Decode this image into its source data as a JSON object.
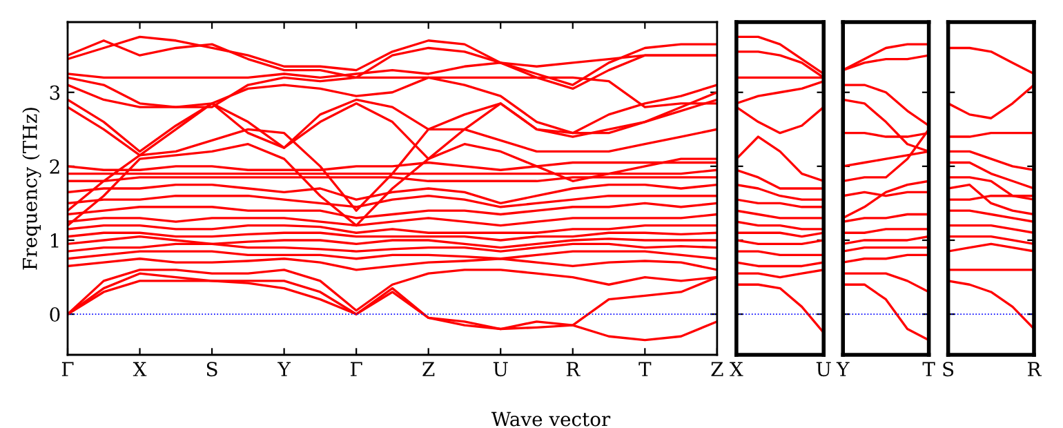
{
  "chart_data": [
    {
      "type": "line",
      "ylabel": "Frequency (THz)",
      "xlabel": "Wave vector",
      "color": "#ff0000",
      "line_style": "solid",
      "marker": "none",
      "grid": false,
      "legend": false,
      "categories": [
        "Γ",
        null,
        "X",
        null,
        "S",
        null,
        "Y",
        null,
        "Γ",
        null,
        "Z",
        null,
        "U",
        null,
        "R",
        null,
        "T",
        null,
        "Z"
      ],
      "ylim": [
        -0.55,
        3.95
      ],
      "yticks": [
        0,
        1,
        2,
        3
      ],
      "ref_lines": [
        {
          "axis": "y",
          "value": 0,
          "color": "#0000ff",
          "line_style": "dotted"
        }
      ],
      "series": [
        {
          "values": [
            0,
            0.3,
            0.45,
            0.45,
            0.45,
            0.42,
            0.35,
            0.2,
            0,
            0.3,
            -0.05,
            -0.15,
            -0.2,
            -0.18,
            -0.15,
            -0.3,
            -0.35,
            -0.3,
            -0.1
          ]
        },
        {
          "values": [
            0,
            0.35,
            0.55,
            0.5,
            0.45,
            0.45,
            0.45,
            0.3,
            0,
            0.35,
            -0.05,
            -0.1,
            -0.2,
            -0.1,
            -0.15,
            0.2,
            0.25,
            0.3,
            0.5
          ]
        },
        {
          "values": [
            0,
            0.45,
            0.6,
            0.6,
            0.55,
            0.55,
            0.6,
            0.45,
            0.05,
            0.4,
            0.55,
            0.6,
            0.6,
            0.55,
            0.5,
            0.4,
            0.5,
            0.45,
            0.5
          ]
        },
        {
          "values": [
            0.65,
            0.7,
            0.75,
            0.7,
            0.7,
            0.72,
            0.75,
            0.7,
            0.6,
            0.65,
            0.7,
            0.72,
            0.75,
            0.7,
            0.65,
            0.7,
            0.72,
            0.7,
            0.6
          ]
        },
        {
          "values": [
            0.75,
            0.8,
            0.85,
            0.85,
            0.85,
            0.8,
            0.8,
            0.8,
            0.75,
            0.8,
            0.8,
            0.78,
            0.75,
            0.8,
            0.85,
            0.85,
            0.85,
            0.8,
            0.75
          ]
        },
        {
          "values": [
            0.85,
            0.9,
            0.9,
            0.95,
            0.95,
            0.9,
            0.9,
            0.88,
            0.85,
            0.88,
            0.9,
            0.9,
            0.85,
            0.9,
            0.95,
            0.95,
            0.9,
            0.92,
            0.9
          ]
        },
        {
          "values": [
            0.95,
            1.0,
            1.05,
            1.0,
            0.95,
            0.98,
            1.0,
            1.0,
            0.95,
            1.0,
            1.0,
            0.95,
            0.9,
            0.95,
            1.0,
            1.02,
            1.0,
            1.0,
            1.0
          ]
        },
        {
          "values": [
            1.05,
            1.1,
            1.1,
            1.05,
            1.05,
            1.08,
            1.1,
            1.1,
            1.05,
            1.05,
            1.05,
            1.05,
            1.0,
            1.05,
            1.05,
            1.1,
            1.1,
            1.08,
            1.1
          ]
        },
        {
          "values": [
            1.15,
            1.2,
            1.2,
            1.15,
            1.15,
            1.2,
            1.2,
            1.18,
            1.1,
            1.15,
            1.1,
            1.1,
            1.1,
            1.1,
            1.15,
            1.15,
            1.2,
            1.2,
            1.2
          ]
        },
        {
          "values": [
            1.25,
            1.3,
            1.3,
            1.25,
            1.3,
            1.3,
            1.3,
            1.25,
            1.2,
            1.25,
            1.3,
            1.25,
            1.2,
            1.25,
            1.3,
            1.3,
            1.3,
            1.3,
            1.35
          ]
        },
        {
          "values": [
            1.35,
            1.4,
            1.45,
            1.45,
            1.45,
            1.4,
            1.4,
            1.4,
            1.3,
            1.35,
            1.4,
            1.4,
            1.35,
            1.4,
            1.45,
            1.45,
            1.5,
            1.45,
            1.5
          ]
        },
        {
          "values": [
            1.5,
            1.55,
            1.55,
            1.6,
            1.6,
            1.6,
            1.55,
            1.5,
            1.45,
            1.55,
            1.6,
            1.55,
            1.45,
            1.5,
            1.55,
            1.6,
            1.6,
            1.6,
            1.6
          ]
        },
        {
          "values": [
            1.65,
            1.7,
            1.7,
            1.75,
            1.75,
            1.7,
            1.65,
            1.7,
            1.55,
            1.65,
            1.7,
            1.65,
            1.5,
            1.6,
            1.7,
            1.75,
            1.75,
            1.7,
            1.75
          ]
        },
        {
          "values": [
            1.8,
            1.8,
            1.85,
            1.85,
            1.85,
            1.85,
            1.85,
            1.85,
            1.85,
            1.85,
            1.8,
            1.8,
            1.8,
            1.8,
            1.85,
            1.85,
            1.85,
            1.85,
            1.85
          ]
        },
        {
          "values": [
            1.9,
            1.9,
            1.9,
            1.9,
            1.9,
            1.9,
            1.9,
            1.9,
            1.9,
            1.9,
            1.9,
            1.9,
            1.9,
            1.9,
            1.9,
            1.9,
            1.9,
            1.9,
            1.95
          ]
        },
        {
          "values": [
            2.0,
            1.95,
            1.95,
            2.0,
            2.0,
            1.95,
            1.95,
            1.95,
            2.0,
            2.0,
            2.05,
            2.0,
            1.95,
            2.0,
            2.05,
            2.05,
            2.05,
            2.05,
            2.05
          ]
        },
        {
          "values": [
            1.2,
            1.6,
            2.1,
            2.15,
            2.2,
            2.3,
            2.1,
            1.6,
            1.2,
            1.7,
            2.1,
            2.3,
            2.2,
            2.0,
            1.8,
            1.9,
            2.0,
            2.1,
            2.1
          ]
        },
        {
          "values": [
            1.4,
            1.8,
            2.15,
            2.2,
            2.35,
            2.5,
            2.45,
            2.0,
            1.4,
            1.9,
            2.5,
            2.5,
            2.35,
            2.2,
            2.2,
            2.2,
            2.3,
            2.4,
            2.5
          ]
        },
        {
          "values": [
            2.8,
            2.5,
            2.15,
            2.5,
            2.85,
            2.6,
            2.25,
            2.6,
            2.85,
            2.6,
            2.1,
            2.5,
            2.85,
            2.5,
            2.4,
            2.5,
            2.6,
            2.75,
            2.9
          ]
        },
        {
          "values": [
            2.9,
            2.6,
            2.2,
            2.55,
            2.85,
            2.45,
            2.25,
            2.7,
            2.9,
            2.8,
            2.5,
            2.7,
            2.85,
            2.5,
            2.45,
            2.45,
            2.6,
            2.8,
            3.0
          ]
        },
        {
          "values": [
            3.1,
            2.9,
            2.8,
            2.8,
            2.85,
            3.05,
            3.1,
            3.05,
            2.95,
            3.0,
            3.2,
            3.1,
            2.95,
            2.6,
            2.45,
            2.7,
            2.85,
            2.95,
            3.1
          ]
        },
        {
          "values": [
            3.2,
            3.1,
            2.85,
            2.8,
            2.8,
            3.1,
            3.2,
            3.15,
            3.2,
            3.2,
            3.2,
            3.2,
            3.2,
            3.2,
            3.2,
            3.15,
            2.8,
            2.85,
            2.85
          ]
        },
        {
          "values": [
            3.25,
            3.2,
            3.2,
            3.2,
            3.2,
            3.2,
            3.25,
            3.2,
            3.25,
            3.3,
            3.25,
            3.35,
            3.4,
            3.2,
            3.05,
            3.3,
            3.5,
            3.5,
            3.5
          ]
        },
        {
          "values": [
            3.45,
            3.6,
            3.75,
            3.7,
            3.6,
            3.5,
            3.35,
            3.35,
            3.3,
            3.55,
            3.7,
            3.65,
            3.4,
            3.25,
            3.1,
            3.4,
            3.6,
            3.65,
            3.65
          ]
        },
        {
          "values": [
            3.5,
            3.7,
            3.5,
            3.6,
            3.65,
            3.45,
            3.3,
            3.3,
            3.2,
            3.5,
            3.6,
            3.55,
            3.4,
            3.35,
            3.4,
            3.45,
            3.5,
            3.5,
            3.5
          ]
        }
      ]
    },
    {
      "type": "line",
      "color": "#ff0000",
      "line_style": "solid",
      "marker": "none",
      "grid": false,
      "legend": false,
      "tick_labels": "x",
      "categories": [
        "X",
        null,
        null,
        null,
        "U"
      ],
      "ylim": [
        -0.55,
        3.95
      ],
      "yticks": [
        0,
        1,
        2,
        3
      ],
      "ref_lines": [
        {
          "axis": "y",
          "value": 0,
          "color": "#0000ff",
          "line_style": "dotted"
        }
      ],
      "series": [
        {
          "values": [
            0.4,
            0.4,
            0.35,
            0.1,
            -0.25
          ]
        },
        {
          "values": [
            0.55,
            0.55,
            0.5,
            0.55,
            0.6
          ]
        },
        {
          "values": [
            0.7,
            0.65,
            0.65,
            0.65,
            0.7
          ]
        },
        {
          "values": [
            0.85,
            0.85,
            0.8,
            0.8,
            0.8
          ]
        },
        {
          "values": [
            1.0,
            0.95,
            0.95,
            0.95,
            1.0
          ]
        },
        {
          "values": [
            1.1,
            1.1,
            1.1,
            1.05,
            1.1
          ]
        },
        {
          "values": [
            1.25,
            1.2,
            1.2,
            1.15,
            1.15
          ]
        },
        {
          "values": [
            1.4,
            1.35,
            1.3,
            1.3,
            1.3
          ]
        },
        {
          "values": [
            1.55,
            1.5,
            1.5,
            1.45,
            1.45
          ]
        },
        {
          "values": [
            1.75,
            1.7,
            1.6,
            1.55,
            1.55
          ]
        },
        {
          "values": [
            1.95,
            1.85,
            1.7,
            1.7,
            1.7
          ]
        },
        {
          "values": [
            2.1,
            2.4,
            2.2,
            1.9,
            1.8
          ]
        },
        {
          "values": [
            2.8,
            2.6,
            2.45,
            2.55,
            2.8
          ]
        },
        {
          "values": [
            2.85,
            2.95,
            3.0,
            3.05,
            3.15
          ]
        },
        {
          "values": [
            3.2,
            3.2,
            3.2,
            3.2,
            3.2
          ]
        },
        {
          "values": [
            3.55,
            3.55,
            3.5,
            3.4,
            3.2
          ]
        },
        {
          "values": [
            3.75,
            3.75,
            3.65,
            3.45,
            3.25
          ]
        }
      ]
    },
    {
      "type": "line",
      "color": "#ff0000",
      "line_style": "solid",
      "marker": "none",
      "grid": false,
      "legend": false,
      "tick_labels": "x",
      "categories": [
        "Y",
        null,
        null,
        null,
        "T"
      ],
      "ylim": [
        -0.55,
        3.95
      ],
      "yticks": [
        0,
        1,
        2,
        3
      ],
      "ref_lines": [
        {
          "axis": "y",
          "value": 0,
          "color": "#0000ff",
          "line_style": "dotted"
        }
      ],
      "series": [
        {
          "values": [
            0.4,
            0.4,
            0.2,
            -0.2,
            -0.35
          ]
        },
        {
          "values": [
            0.55,
            0.55,
            0.55,
            0.45,
            0.3
          ]
        },
        {
          "values": [
            0.7,
            0.75,
            0.75,
            0.8,
            0.8
          ]
        },
        {
          "values": [
            0.85,
            0.9,
            0.9,
            0.9,
            0.9
          ]
        },
        {
          "values": [
            0.95,
            1.0,
            1.0,
            1.0,
            1.05
          ]
        },
        {
          "values": [
            1.1,
            1.1,
            1.15,
            1.15,
            1.15
          ]
        },
        {
          "values": [
            1.25,
            1.3,
            1.3,
            1.35,
            1.35
          ]
        },
        {
          "values": [
            1.3,
            1.45,
            1.65,
            1.75,
            1.8
          ]
        },
        {
          "values": [
            1.6,
            1.65,
            1.6,
            1.65,
            1.65
          ]
        },
        {
          "values": [
            1.8,
            1.85,
            1.85,
            2.1,
            2.5
          ]
        },
        {
          "values": [
            2.0,
            2.05,
            2.1,
            2.15,
            2.2
          ]
        },
        {
          "values": [
            2.45,
            2.45,
            2.4,
            2.4,
            2.45
          ]
        },
        {
          "values": [
            2.9,
            2.85,
            2.6,
            2.3,
            2.2
          ]
        },
        {
          "values": [
            3.1,
            3.1,
            3.0,
            2.75,
            2.55
          ]
        },
        {
          "values": [
            3.3,
            3.4,
            3.45,
            3.45,
            3.5
          ]
        },
        {
          "values": [
            3.3,
            3.45,
            3.6,
            3.65,
            3.65
          ]
        }
      ]
    },
    {
      "type": "line",
      "color": "#ff0000",
      "line_style": "solid",
      "marker": "none",
      "grid": false,
      "legend": false,
      "tick_labels": "x",
      "categories": [
        "S",
        null,
        null,
        null,
        "R"
      ],
      "ylim": [
        -0.55,
        3.95
      ],
      "yticks": [
        0,
        1,
        2,
        3
      ],
      "ref_lines": [
        {
          "axis": "y",
          "value": 0,
          "color": "#0000ff",
          "line_style": "dotted"
        }
      ],
      "series": [
        {
          "values": [
            0.45,
            0.4,
            0.3,
            0.1,
            -0.2
          ]
        },
        {
          "values": [
            0.6,
            0.6,
            0.6,
            0.6,
            0.6
          ]
        },
        {
          "values": [
            0.85,
            0.9,
            0.95,
            0.9,
            0.85
          ]
        },
        {
          "values": [
            1.05,
            1.05,
            1.05,
            1.0,
            0.95
          ]
        },
        {
          "values": [
            1.2,
            1.2,
            1.2,
            1.15,
            1.1
          ]
        },
        {
          "values": [
            1.4,
            1.4,
            1.35,
            1.3,
            1.25
          ]
        },
        {
          "values": [
            1.55,
            1.55,
            1.6,
            1.6,
            1.6
          ]
        },
        {
          "values": [
            1.7,
            1.75,
            1.5,
            1.4,
            1.35
          ]
        },
        {
          "values": [
            1.85,
            1.85,
            1.8,
            1.6,
            1.55
          ]
        },
        {
          "values": [
            2.05,
            2.05,
            1.9,
            1.8,
            1.7
          ]
        },
        {
          "values": [
            2.2,
            2.2,
            2.1,
            2.0,
            1.95
          ]
        },
        {
          "values": [
            2.4,
            2.4,
            2.45,
            2.45,
            2.45
          ]
        },
        {
          "values": [
            2.85,
            2.7,
            2.65,
            2.85,
            3.1
          ]
        },
        {
          "values": [
            3.6,
            3.6,
            3.55,
            3.4,
            3.25
          ]
        }
      ]
    }
  ]
}
